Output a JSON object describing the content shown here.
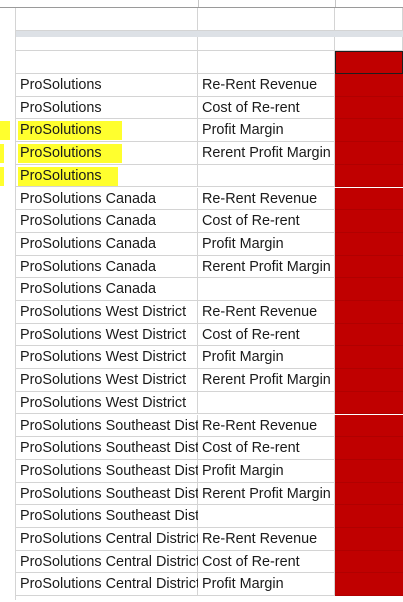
{
  "colors": {
    "highlight": "#ffff2e",
    "red_fill": "#c00000",
    "grid": "#d4d4d4"
  },
  "rows": [
    {
      "name": "ProSolutions",
      "metric": "Re-Rent Revenue"
    },
    {
      "name": "ProSolutions",
      "metric": "Cost of Re-rent"
    },
    {
      "name": "ProSolutions",
      "metric": "Profit Margin",
      "highlight": true
    },
    {
      "name": "ProSolutions",
      "metric": "Rerent Profit Margin",
      "highlight": true
    },
    {
      "name": "ProSolutions",
      "metric": "",
      "highlight": true
    },
    {
      "name": "ProSolutions Canada",
      "metric": "Re-Rent Revenue"
    },
    {
      "name": "ProSolutions Canada",
      "metric": "Cost of Re-rent"
    },
    {
      "name": "ProSolutions Canada",
      "metric": "Profit Margin"
    },
    {
      "name": "ProSolutions Canada",
      "metric": "Rerent Profit Margin"
    },
    {
      "name": "ProSolutions Canada",
      "metric": ""
    },
    {
      "name": "ProSolutions West District",
      "metric": "Re-Rent Revenue"
    },
    {
      "name": "ProSolutions West District",
      "metric": "Cost of Re-rent"
    },
    {
      "name": "ProSolutions West District",
      "metric": "Profit Margin"
    },
    {
      "name": "ProSolutions West District",
      "metric": "Rerent Profit Margin"
    },
    {
      "name": "ProSolutions West District",
      "metric": ""
    },
    {
      "name": "ProSolutions Southeast District",
      "metric": "Re-Rent Revenue"
    },
    {
      "name": "ProSolutions Southeast District",
      "metric": "Cost of Re-rent"
    },
    {
      "name": "ProSolutions Southeast District",
      "metric": "Profit Margin"
    },
    {
      "name": "ProSolutions Southeast District",
      "metric": "Rerent Profit Margin"
    },
    {
      "name": "ProSolutions Southeast District",
      "metric": ""
    },
    {
      "name": "ProSolutions Central District",
      "metric": "Re-Rent Revenue"
    },
    {
      "name": "ProSolutions Central District",
      "metric": "Cost of Re-rent"
    },
    {
      "name": "ProSolutions Central District",
      "metric": "Profit Margin"
    }
  ]
}
